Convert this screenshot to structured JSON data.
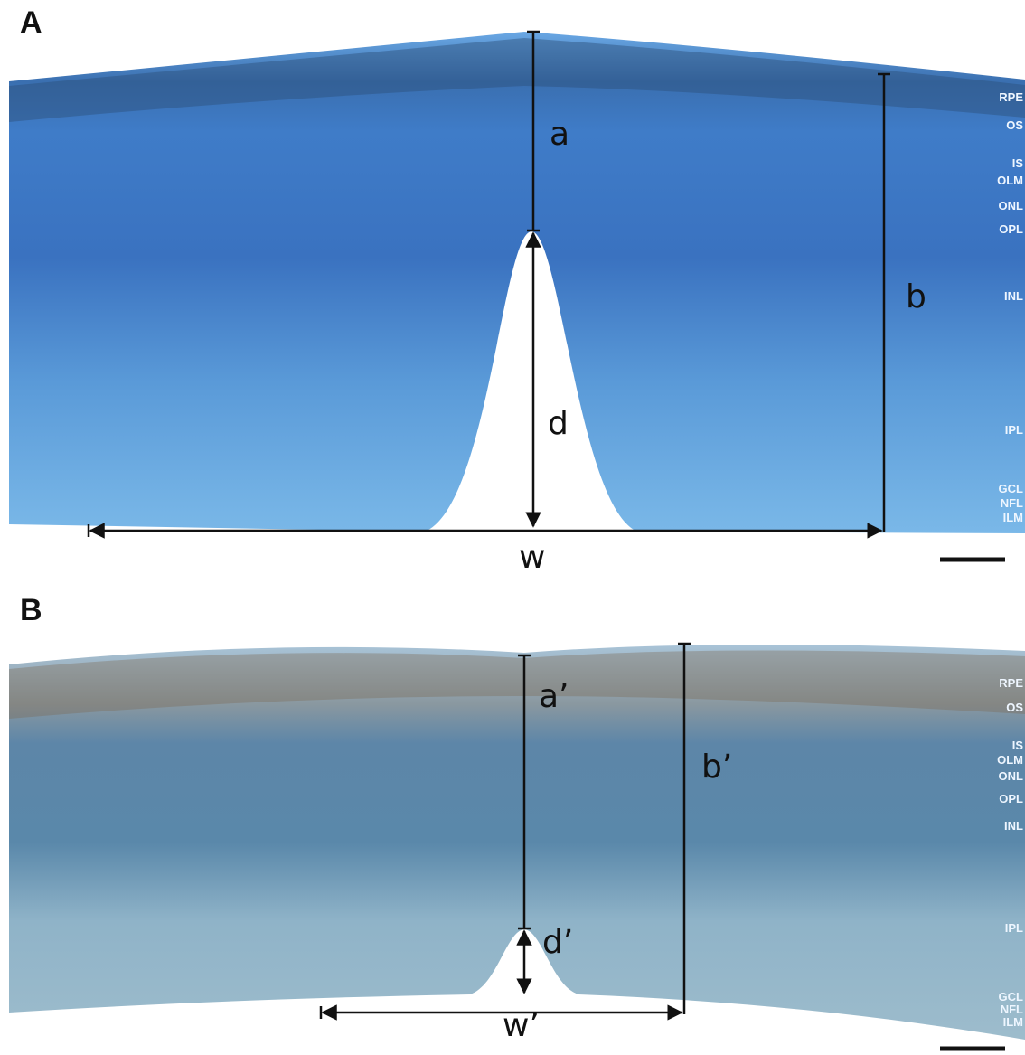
{
  "panels": [
    {
      "label": "A",
      "measurements": {
        "a": "a",
        "b": "b",
        "d": "d",
        "w": "w"
      },
      "layers": [
        "RPE",
        "OS",
        "IS",
        "OLM",
        "ONL",
        "OPL",
        "INL",
        "IPL",
        "GCL",
        "NFL",
        "ILM"
      ]
    },
    {
      "label": "B",
      "measurements": {
        "a": "a’",
        "b": "b’",
        "d": "d’",
        "w": "w’"
      },
      "layers": [
        "RPE",
        "OS",
        "IS",
        "OLM",
        "ONL",
        "OPL",
        "INL",
        "IPL",
        "GCL",
        "NFL",
        "ILM"
      ]
    }
  ]
}
